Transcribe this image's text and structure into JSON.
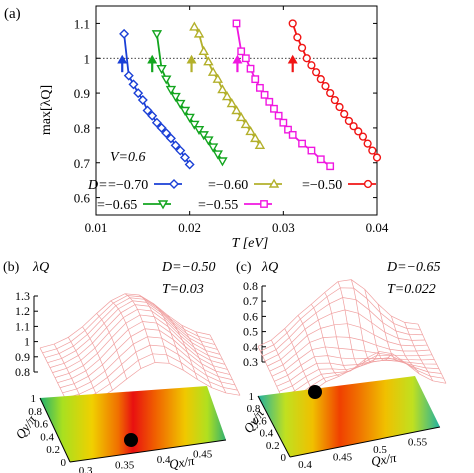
{
  "panel_labels": {
    "a": "(a)",
    "b": "(b)",
    "c": "(c)"
  },
  "colors": {
    "d070": "#1a3fd6",
    "d065": "#13a51f",
    "d060": "#b3b02b",
    "d055": "#f017e0",
    "d050": "#f01414",
    "surface": "#f0a0a0",
    "marker": "#000000"
  },
  "chart_data": [
    {
      "type": "line",
      "panel": "(a)",
      "xlabel": "T [eV]",
      "ylabel": "max[λQ]",
      "xlim": [
        0.01,
        0.04
      ],
      "ylim": [
        0.55,
        1.15
      ],
      "xticks": [
        "0.01",
        "0.02",
        "0.03",
        "0.04"
      ],
      "yticks": [
        "0.6",
        "0.7",
        "0.8",
        "0.9",
        "1",
        "1.1"
      ],
      "annotation": "V=0.6",
      "reference_line": {
        "y": 1,
        "style": "dotted"
      },
      "legend_prefix": "D=",
      "series": [
        {
          "name": "−0.70",
          "color": "#1a3fd6",
          "marker": "diamond",
          "x": [
            0.013,
            0.0135,
            0.014,
            0.0145,
            0.015,
            0.0155,
            0.016,
            0.0165,
            0.017,
            0.0175,
            0.018,
            0.0185,
            0.019,
            0.0195,
            0.02
          ],
          "y": [
            1.07,
            0.95,
            0.925,
            0.9,
            0.88,
            0.85,
            0.835,
            0.815,
            0.8,
            0.785,
            0.77,
            0.75,
            0.735,
            0.715,
            0.695
          ],
          "arrow_x": 0.0128
        },
        {
          "name": "−0.65",
          "color": "#13a51f",
          "marker": "triangle-down",
          "x": [
            0.0165,
            0.017,
            0.0175,
            0.018,
            0.0185,
            0.019,
            0.0195,
            0.02,
            0.0205,
            0.021,
            0.0215,
            0.022,
            0.0225,
            0.023,
            0.0235
          ],
          "y": [
            1.07,
            0.97,
            0.94,
            0.91,
            0.89,
            0.87,
            0.85,
            0.83,
            0.81,
            0.795,
            0.78,
            0.765,
            0.745,
            0.725,
            0.705
          ],
          "arrow_x": 0.016
        },
        {
          "name": "−0.60",
          "color": "#b3b02b",
          "marker": "triangle-up",
          "x": [
            0.0205,
            0.021,
            0.0215,
            0.022,
            0.0225,
            0.023,
            0.0235,
            0.024,
            0.0245,
            0.025,
            0.0255,
            0.026,
            0.0265,
            0.027,
            0.0275
          ],
          "y": [
            1.09,
            1.07,
            1.02,
            0.99,
            0.96,
            0.94,
            0.91,
            0.89,
            0.87,
            0.85,
            0.83,
            0.81,
            0.79,
            0.77,
            0.75
          ],
          "arrow_x": 0.0202
        },
        {
          "name": "−0.55",
          "color": "#f017e0",
          "marker": "square",
          "x": [
            0.025,
            0.0255,
            0.026,
            0.0265,
            0.027,
            0.0275,
            0.028,
            0.0285,
            0.029,
            0.0295,
            0.03,
            0.0305,
            0.031,
            0.032,
            0.033,
            0.034,
            0.035
          ],
          "y": [
            1.1,
            1.02,
            1.0,
            0.97,
            0.94,
            0.915,
            0.895,
            0.875,
            0.855,
            0.835,
            0.815,
            0.795,
            0.78,
            0.755,
            0.735,
            0.71,
            0.69
          ],
          "arrow_x": 0.0251
        },
        {
          "name": "−0.50",
          "color": "#f01414",
          "marker": "circle",
          "x": [
            0.031,
            0.0315,
            0.032,
            0.0325,
            0.033,
            0.0335,
            0.034,
            0.0345,
            0.035,
            0.0355,
            0.036,
            0.0365,
            0.037,
            0.0375,
            0.038,
            0.0385,
            0.039,
            0.0395,
            0.04
          ],
          "y": [
            1.1,
            1.06,
            1.03,
            1.0,
            0.98,
            0.96,
            0.94,
            0.92,
            0.9,
            0.88,
            0.86,
            0.84,
            0.82,
            0.805,
            0.79,
            0.775,
            0.755,
            0.735,
            0.715
          ],
          "arrow_x": 0.031
        }
      ]
    },
    {
      "type": "heatmap",
      "panel": "(b)",
      "zlabel": "λQ",
      "params": [
        "D=−0.50",
        "T=0.03"
      ],
      "xlabel": "Qx/π",
      "ylabel": "Qy/π",
      "zticks": [
        "0.8",
        "0.9",
        "1",
        "1.1",
        "1.2",
        "1.3"
      ],
      "xticks": [
        "0.3",
        "0.35",
        "0.4",
        "0.45"
      ],
      "yticks": [
        "0",
        "0.2",
        "0.4",
        "0.6",
        "0.8",
        "1"
      ],
      "peak": {
        "qx": 0.34,
        "qy": 0.0
      }
    },
    {
      "type": "heatmap",
      "panel": "(c)",
      "zlabel": "λQ",
      "params": [
        "D=−0.65",
        "T=0.022"
      ],
      "xlabel": "Qx/π",
      "ylabel": "Qy/π",
      "zticks": [
        "0.3",
        "0.4",
        "0.5",
        "0.6",
        "0.7",
        "0.8"
      ],
      "xticks": [
        "0.4",
        "0.45",
        "0.5",
        "0.55"
      ],
      "yticks": [
        "0",
        "0.2",
        "0.4",
        "0.6",
        "0.8",
        "1"
      ],
      "peak": {
        "qx": 0.38,
        "qy": 0.96
      }
    }
  ]
}
